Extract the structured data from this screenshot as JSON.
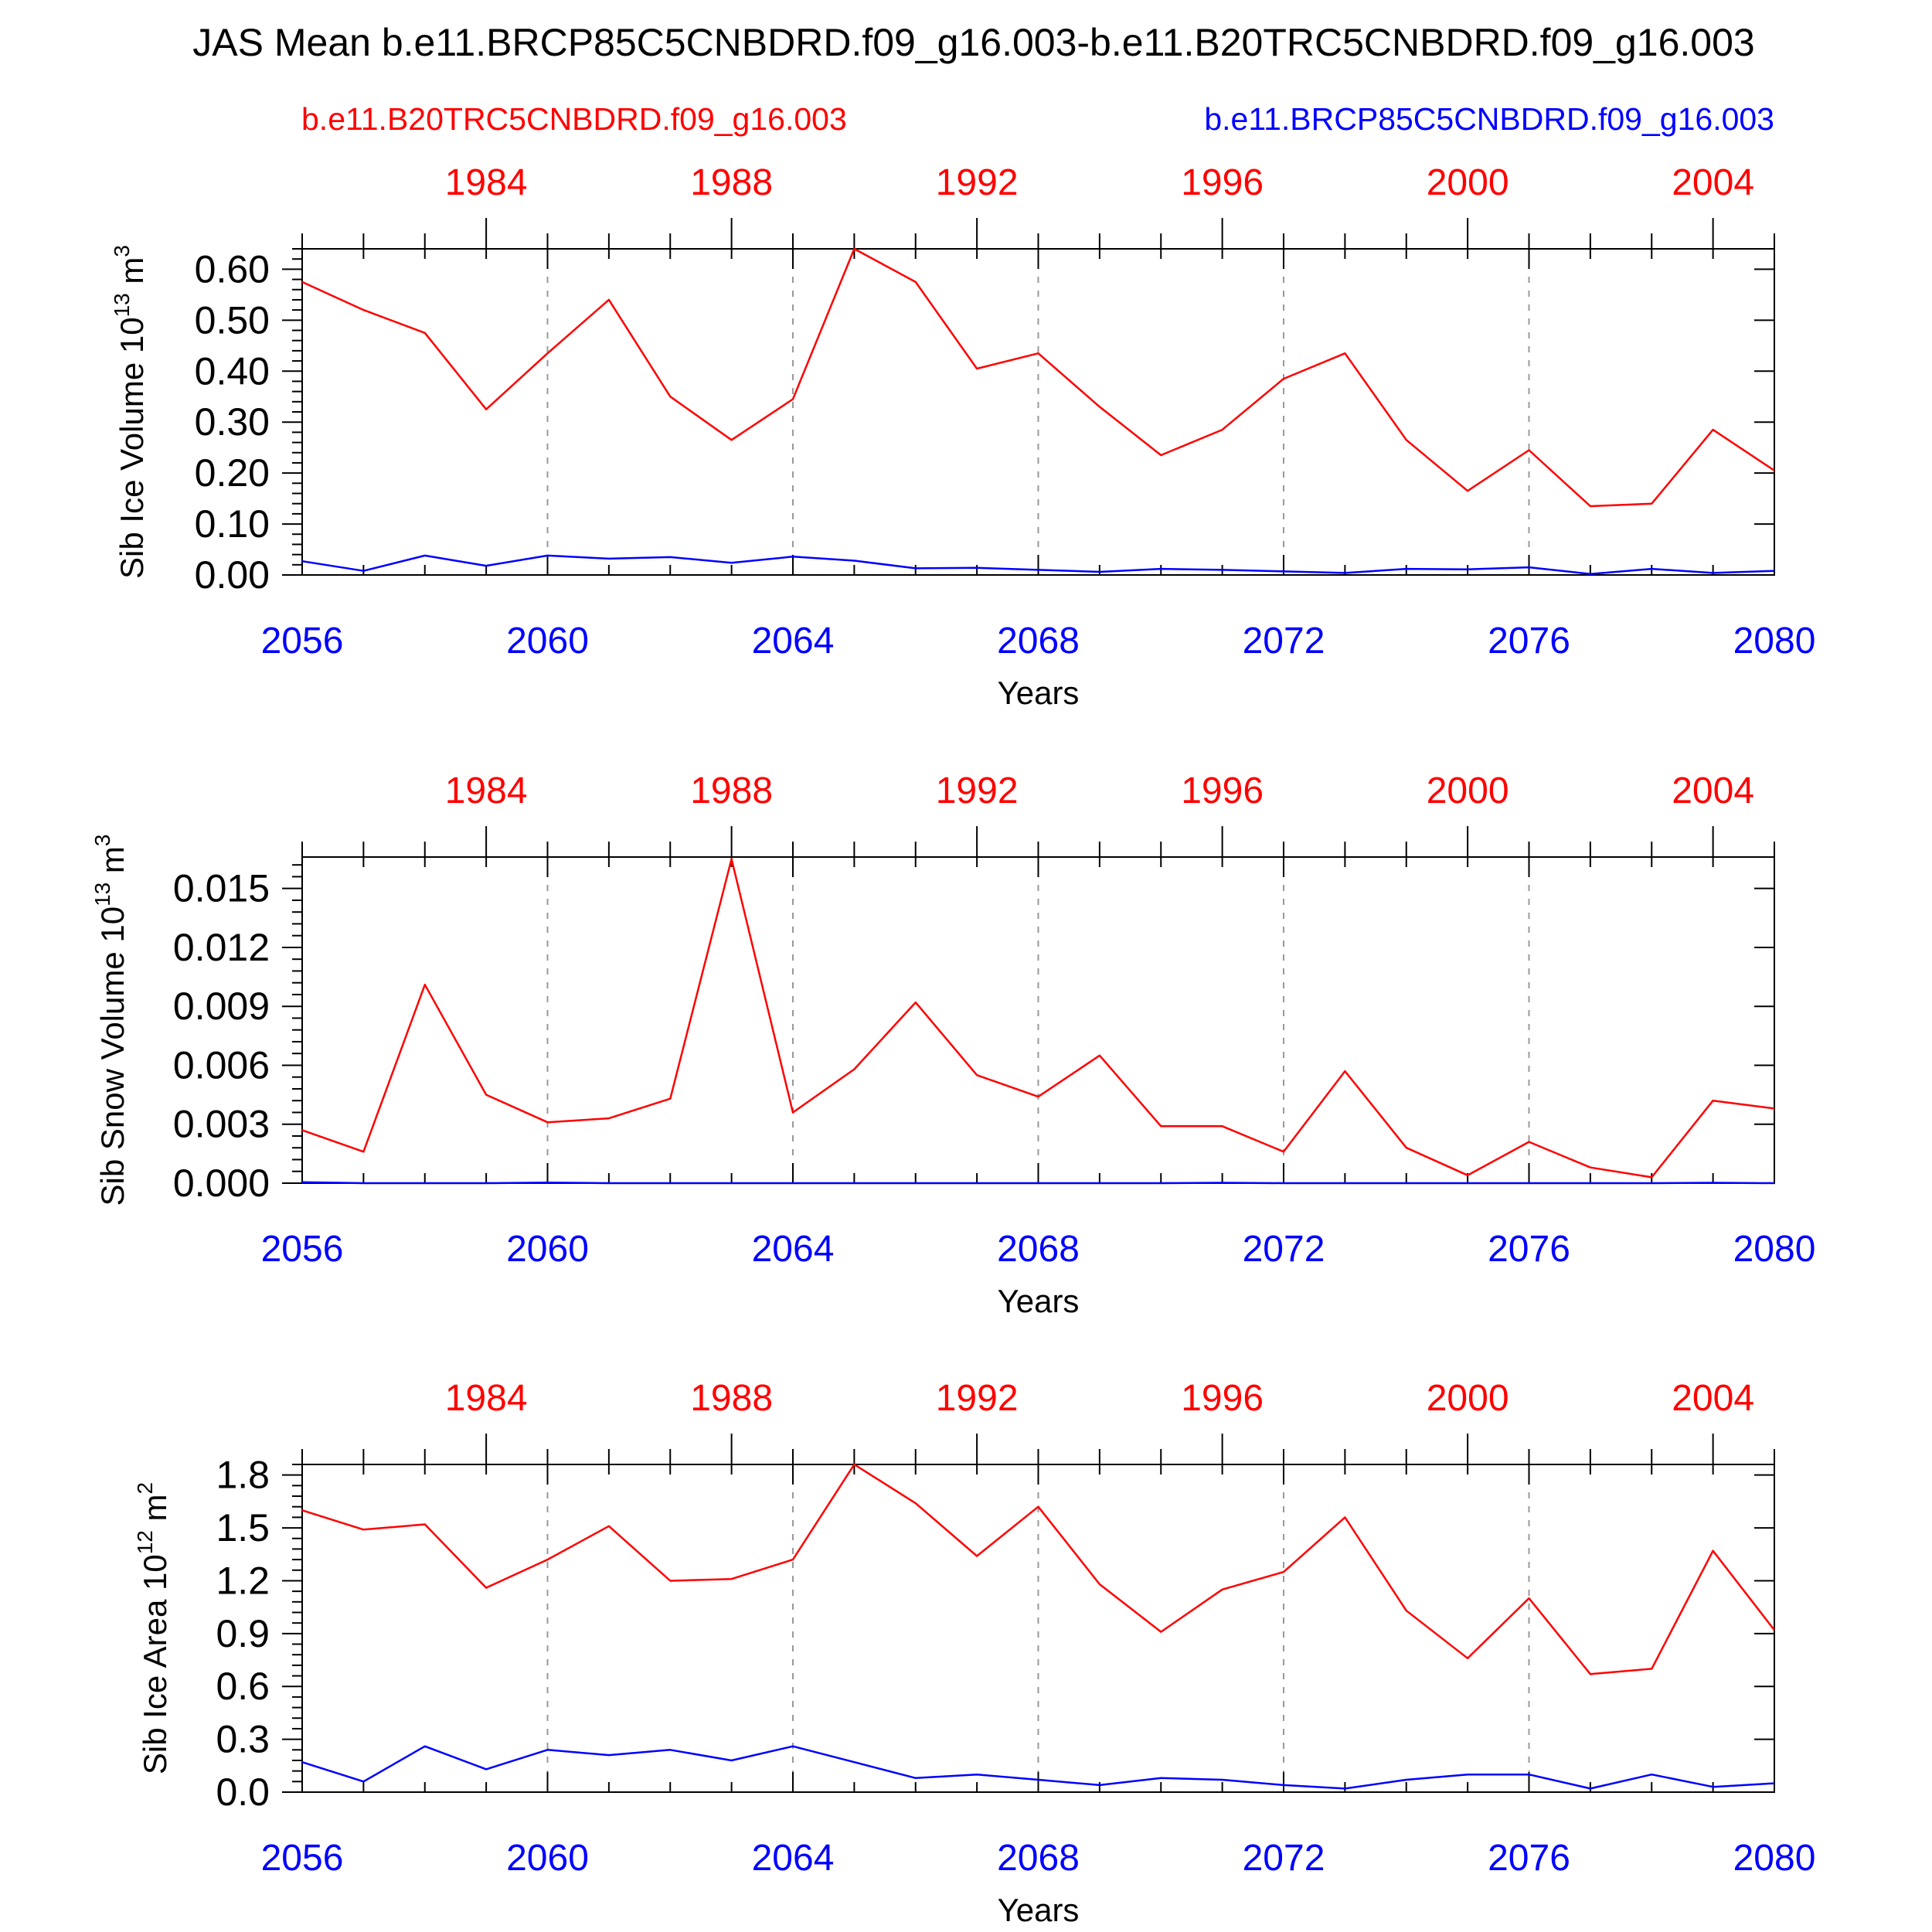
{
  "title": "JAS Mean b.e11.BRCP85C5CNBDRD.f09_g16.003-b.e11.B20TRC5CNBDRD.f09_g16.003",
  "legend": {
    "left": "b.e11.B20TRC5CNBDRD.f09_g16.003",
    "right": "b.e11.BRCP85C5CNBDRD.f09_g16.003",
    "left_color": "#ff0000",
    "right_color": "#0000ff"
  },
  "colors": {
    "red": "#ff0000",
    "blue": "#0000ff",
    "frame": "#000000",
    "grid": "#999999"
  },
  "chart_data": [
    {
      "type": "line",
      "ylabel": "Sib Ice Volume 10",
      "ylabel_sup": "13",
      "ylabel_unit": "m",
      "ylabel_unit_sup": "3",
      "xlabel": "Years",
      "ylim": [
        0,
        0.64
      ],
      "yticks": [
        0,
        0.1,
        0.2,
        0.3,
        0.4,
        0.5,
        0.6
      ],
      "ytick_labels": [
        "0.00",
        "0.10",
        "0.20",
        "0.30",
        "0.40",
        "0.50",
        "0.60"
      ],
      "xlim": [
        2056,
        2080
      ],
      "xticks": [
        2056,
        2060,
        2064,
        2068,
        2072,
        2076,
        2080
      ],
      "xtick_labels": [
        "2056",
        "2060",
        "2064",
        "2068",
        "2072",
        "2076",
        "2080"
      ],
      "top_xticks": [
        1984,
        1988,
        1992,
        1996,
        2000,
        2004
      ],
      "top_xtick_labels": [
        "1984",
        "1988",
        "1992",
        "1996",
        "2000",
        "2004"
      ],
      "grid": "vertical dashed at bottom major ticks",
      "series": [
        {
          "color": "#ff0000",
          "x": [
            1981,
            1982,
            1983,
            1984,
            1985,
            1986,
            1987,
            1988,
            1989,
            1990,
            1991,
            1992,
            1993,
            1994,
            1995,
            1996,
            1997,
            1998,
            1999,
            2000,
            2001,
            2002,
            2003,
            2004,
            2005
          ],
          "values": [
            0.575,
            0.52,
            0.475,
            0.325,
            0.435,
            0.54,
            0.35,
            0.265,
            0.345,
            0.64,
            0.575,
            0.405,
            0.435,
            0.33,
            0.235,
            0.285,
            0.385,
            0.435,
            0.265,
            0.165,
            0.245,
            0.135,
            0.14,
            0.285,
            0.205
          ]
        },
        {
          "color": "#0000ff",
          "x": [
            2056,
            2057,
            2058,
            2059,
            2060,
            2061,
            2062,
            2063,
            2064,
            2065,
            2066,
            2067,
            2068,
            2069,
            2070,
            2071,
            2072,
            2073,
            2074,
            2075,
            2076,
            2077,
            2078,
            2079,
            2080
          ],
          "values": [
            0.027,
            0.008,
            0.038,
            0.018,
            0.038,
            0.032,
            0.035,
            0.024,
            0.036,
            0.028,
            0.013,
            0.014,
            0.01,
            0.006,
            0.012,
            0.01,
            0.007,
            0.004,
            0.012,
            0.011,
            0.015,
            0.002,
            0.012,
            0.004,
            0.008
          ]
        }
      ]
    },
    {
      "type": "line",
      "ylabel": "Sib Snow Volume 10",
      "ylabel_sup": "13",
      "ylabel_unit": "m",
      "ylabel_unit_sup": "3",
      "xlabel": "Years",
      "ylim": [
        0,
        0.0166
      ],
      "yticks": [
        0,
        0.003,
        0.006,
        0.009,
        0.012,
        0.015
      ],
      "ytick_labels": [
        "0.000",
        "0.003",
        "0.006",
        "0.009",
        "0.012",
        "0.015"
      ],
      "xlim": [
        2056,
        2080
      ],
      "xticks": [
        2056,
        2060,
        2064,
        2068,
        2072,
        2076,
        2080
      ],
      "xtick_labels": [
        "2056",
        "2060",
        "2064",
        "2068",
        "2072",
        "2076",
        "2080"
      ],
      "top_xticks": [
        1984,
        1988,
        1992,
        1996,
        2000,
        2004
      ],
      "top_xtick_labels": [
        "1984",
        "1988",
        "1992",
        "1996",
        "2000",
        "2004"
      ],
      "grid": "vertical dashed at bottom major ticks",
      "series": [
        {
          "color": "#ff0000",
          "x": [
            1981,
            1982,
            1983,
            1984,
            1985,
            1986,
            1987,
            1988,
            1989,
            1990,
            1991,
            1992,
            1993,
            1994,
            1995,
            1996,
            1997,
            1998,
            1999,
            2000,
            2001,
            2002,
            2003,
            2004,
            2005
          ],
          "values": [
            0.0027,
            0.0016,
            0.0101,
            0.0045,
            0.0031,
            0.0033,
            0.0043,
            0.0165,
            0.0036,
            0.0058,
            0.0092,
            0.0055,
            0.0044,
            0.0065,
            0.0029,
            0.0029,
            0.0016,
            0.0057,
            0.0018,
            0.0004,
            0.0021,
            0.0008,
            0.0003,
            0.0042,
            0.0038
          ]
        },
        {
          "color": "#0000ff",
          "x": [
            2056,
            2057,
            2058,
            2059,
            2060,
            2061,
            2062,
            2063,
            2064,
            2065,
            2066,
            2067,
            2068,
            2069,
            2070,
            2071,
            2072,
            2073,
            2074,
            2075,
            2076,
            2077,
            2078,
            2079,
            2080
          ],
          "values": [
            5e-05,
            0.0,
            0.0,
            0.0,
            3e-05,
            0.0,
            0.0,
            0.0,
            0.0,
            0.0,
            0.0,
            0.0,
            0.0,
            0.0,
            0.0,
            2e-05,
            0.0,
            0.0,
            0.0,
            0.0,
            0.0,
            0.0,
            0.0,
            2e-05,
            0.0
          ]
        }
      ]
    },
    {
      "type": "line",
      "ylabel": "Sib Ice Area 10",
      "ylabel_sup": "12",
      "ylabel_unit": "m",
      "ylabel_unit_sup": "2",
      "xlabel": "Years",
      "ylim": [
        0,
        1.86
      ],
      "yticks": [
        0,
        0.3,
        0.6,
        0.9,
        1.2,
        1.5,
        1.8
      ],
      "ytick_labels": [
        "0.0",
        "0.3",
        "0.6",
        "0.9",
        "1.2",
        "1.5",
        "1.8"
      ],
      "xlim": [
        2056,
        2080
      ],
      "xticks": [
        2056,
        2060,
        2064,
        2068,
        2072,
        2076,
        2080
      ],
      "xtick_labels": [
        "2056",
        "2060",
        "2064",
        "2068",
        "2072",
        "2076",
        "2080"
      ],
      "top_xticks": [
        1984,
        1988,
        1992,
        1996,
        2000,
        2004
      ],
      "top_xtick_labels": [
        "1984",
        "1988",
        "1992",
        "1996",
        "2000",
        "2004"
      ],
      "grid": "vertical dashed at bottom major ticks",
      "series": [
        {
          "color": "#ff0000",
          "x": [
            1981,
            1982,
            1983,
            1984,
            1985,
            1986,
            1987,
            1988,
            1989,
            1990,
            1991,
            1992,
            1993,
            1994,
            1995,
            1996,
            1997,
            1998,
            1999,
            2000,
            2001,
            2002,
            2003,
            2004,
            2005
          ],
          "values": [
            1.6,
            1.49,
            1.52,
            1.16,
            1.32,
            1.51,
            1.2,
            1.21,
            1.32,
            1.86,
            1.64,
            1.34,
            1.62,
            1.18,
            0.91,
            1.15,
            1.25,
            1.56,
            1.03,
            0.76,
            1.1,
            0.67,
            0.7,
            1.37,
            0.92
          ]
        },
        {
          "color": "#0000ff",
          "x": [
            2056,
            2057,
            2058,
            2059,
            2060,
            2061,
            2062,
            2063,
            2064,
            2065,
            2066,
            2067,
            2068,
            2069,
            2070,
            2071,
            2072,
            2073,
            2074,
            2075,
            2076,
            2077,
            2078,
            2079,
            2080
          ],
          "values": [
            0.17,
            0.06,
            0.26,
            0.13,
            0.24,
            0.21,
            0.24,
            0.18,
            0.26,
            0.17,
            0.08,
            0.1,
            0.07,
            0.04,
            0.08,
            0.07,
            0.04,
            0.02,
            0.07,
            0.1,
            0.1,
            0.02,
            0.1,
            0.03,
            0.05
          ]
        }
      ]
    }
  ]
}
